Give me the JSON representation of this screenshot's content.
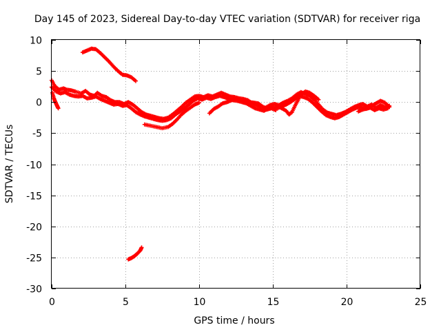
{
  "chart_data": {
    "type": "scatter",
    "title": "Day 145 of 2023, Sidereal Day-to-day VTEC variation (SDTVAR) for receiver riga",
    "xlabel": "GPS time / hours",
    "ylabel": "SDTVAR / TECUs",
    "xlim": [
      0,
      25
    ],
    "ylim": [
      -30,
      10
    ],
    "xticks": [
      0,
      5,
      10,
      15,
      20,
      25
    ],
    "yticks": [
      -30,
      -25,
      -20,
      -15,
      -10,
      -5,
      0,
      5,
      10
    ],
    "grid": true,
    "marker": "plus",
    "colors": {
      "series": "#ff0000",
      "grid": "#a0a0a0",
      "axes": "#000000"
    },
    "series": [
      {
        "name": "arc-main",
        "points": [
          [
            0.0,
            3.5
          ],
          [
            0.2,
            2.6
          ],
          [
            0.5,
            2.0
          ],
          [
            0.8,
            2.2
          ],
          [
            1.0,
            2.0
          ],
          [
            1.3,
            1.9
          ],
          [
            1.6,
            1.7
          ],
          [
            2.0,
            1.4
          ],
          [
            2.3,
            1.8
          ],
          [
            2.6,
            1.2
          ],
          [
            2.9,
            1.0
          ],
          [
            3.1,
            1.5
          ],
          [
            3.4,
            1.0
          ],
          [
            3.7,
            0.8
          ],
          [
            4.0,
            0.3
          ],
          [
            4.3,
            0.0
          ],
          [
            4.6,
            0.0
          ],
          [
            4.9,
            -0.3
          ],
          [
            5.2,
            0.0
          ],
          [
            5.5,
            -0.4
          ],
          [
            5.8,
            -1.0
          ],
          [
            6.1,
            -1.6
          ],
          [
            6.4,
            -2.0
          ],
          [
            6.7,
            -2.2
          ],
          [
            7.0,
            -2.4
          ],
          [
            7.3,
            -2.6
          ],
          [
            7.6,
            -2.7
          ],
          [
            7.9,
            -2.5
          ],
          [
            8.2,
            -2.0
          ],
          [
            8.5,
            -1.4
          ],
          [
            8.8,
            -0.8
          ],
          [
            9.1,
            -0.1
          ],
          [
            9.4,
            0.4
          ],
          [
            9.7,
            0.9
          ],
          [
            10.0,
            1.0
          ],
          [
            10.3,
            0.8
          ],
          [
            10.6,
            1.1
          ],
          [
            10.9,
            0.9
          ],
          [
            11.2,
            1.2
          ],
          [
            11.5,
            1.5
          ],
          [
            11.8,
            1.2
          ],
          [
            12.1,
            0.9
          ],
          [
            12.4,
            0.8
          ],
          [
            12.7,
            0.6
          ],
          [
            13.0,
            0.5
          ],
          [
            13.3,
            0.3
          ],
          [
            13.6,
            -0.2
          ],
          [
            13.9,
            -0.5
          ],
          [
            14.2,
            -0.8
          ],
          [
            14.5,
            -0.9
          ],
          [
            14.8,
            -0.5
          ],
          [
            15.1,
            -0.3
          ],
          [
            15.4,
            -0.5
          ],
          [
            15.7,
            -0.1
          ],
          [
            16.0,
            0.2
          ],
          [
            16.3,
            0.6
          ],
          [
            16.6,
            1.2
          ],
          [
            16.9,
            1.6
          ],
          [
            17.2,
            1.3
          ],
          [
            17.5,
            1.0
          ],
          [
            17.8,
            0.4
          ],
          [
            18.1,
            -0.4
          ],
          [
            18.4,
            -1.2
          ],
          [
            18.7,
            -1.7
          ],
          [
            19.0,
            -1.9
          ],
          [
            19.3,
            -2.1
          ],
          [
            19.6,
            -1.9
          ],
          [
            19.9,
            -1.6
          ],
          [
            20.2,
            -1.2
          ],
          [
            20.5,
            -0.8
          ],
          [
            20.8,
            -0.5
          ],
          [
            21.1,
            -0.3
          ],
          [
            21.4,
            -0.7
          ],
          [
            21.7,
            -0.4
          ],
          [
            22.0,
            -0.9
          ],
          [
            22.3,
            -0.5
          ],
          [
            22.6,
            -0.8
          ],
          [
            22.9,
            -0.6
          ]
        ]
      },
      {
        "name": "arc-lower-band",
        "points": [
          [
            0.0,
            2.4
          ],
          [
            0.3,
            1.7
          ],
          [
            0.6,
            1.4
          ],
          [
            0.9,
            1.6
          ],
          [
            1.2,
            1.2
          ],
          [
            1.5,
            1.0
          ],
          [
            1.8,
            0.9
          ],
          [
            2.1,
            1.0
          ],
          [
            2.4,
            0.6
          ],
          [
            2.7,
            0.7
          ],
          [
            3.0,
            0.9
          ],
          [
            3.3,
            0.5
          ],
          [
            3.6,
            0.2
          ],
          [
            3.9,
            -0.1
          ],
          [
            4.2,
            -0.4
          ],
          [
            4.5,
            -0.3
          ],
          [
            4.8,
            -0.6
          ],
          [
            5.1,
            -0.5
          ],
          [
            5.4,
            -1.0
          ],
          [
            5.7,
            -1.6
          ],
          [
            6.0,
            -2.0
          ],
          [
            6.3,
            -2.3
          ],
          [
            6.6,
            -2.5
          ],
          [
            6.9,
            -2.7
          ],
          [
            7.2,
            -2.9
          ],
          [
            7.5,
            -3.0
          ],
          [
            7.8,
            -2.9
          ],
          [
            8.1,
            -2.6
          ],
          [
            8.4,
            -2.0
          ],
          [
            8.7,
            -1.5
          ],
          [
            9.0,
            -1.0
          ],
          [
            9.3,
            -0.4
          ],
          [
            9.6,
            0.2
          ],
          [
            9.9,
            0.6
          ],
          [
            10.2,
            0.4
          ],
          [
            10.5,
            0.7
          ],
          [
            10.8,
            0.5
          ],
          [
            11.1,
            0.8
          ],
          [
            11.4,
            1.0
          ],
          [
            11.7,
            0.8
          ],
          [
            12.0,
            0.5
          ],
          [
            12.3,
            0.3
          ],
          [
            12.6,
            0.2
          ],
          [
            12.9,
            0.0
          ],
          [
            13.2,
            -0.2
          ],
          [
            13.5,
            -0.6
          ],
          [
            13.8,
            -1.0
          ],
          [
            14.1,
            -1.2
          ],
          [
            14.4,
            -1.4
          ],
          [
            14.7,
            -1.0
          ],
          [
            15.0,
            -0.8
          ],
          [
            15.3,
            -1.0
          ],
          [
            15.6,
            -0.7
          ],
          [
            15.9,
            -0.4
          ],
          [
            16.2,
            0.0
          ],
          [
            16.5,
            0.5
          ],
          [
            16.8,
            1.0
          ],
          [
            17.1,
            0.8
          ],
          [
            17.4,
            0.5
          ],
          [
            17.7,
            -0.1
          ],
          [
            18.0,
            -0.8
          ],
          [
            18.3,
            -1.5
          ],
          [
            18.6,
            -2.1
          ],
          [
            18.9,
            -2.4
          ],
          [
            19.2,
            -2.6
          ],
          [
            19.5,
            -2.4
          ],
          [
            19.8,
            -2.0
          ],
          [
            20.1,
            -1.6
          ],
          [
            20.4,
            -1.2
          ],
          [
            20.7,
            -0.9
          ],
          [
            21.0,
            -0.8
          ],
          [
            21.3,
            -1.1
          ],
          [
            21.6,
            -0.9
          ],
          [
            21.9,
            -1.3
          ],
          [
            22.2,
            -1.0
          ],
          [
            22.5,
            -1.2
          ],
          [
            22.8,
            -1.0
          ]
        ]
      },
      {
        "name": "arc-early-dip",
        "points": [
          [
            0.05,
            1.5
          ],
          [
            0.15,
            0.6
          ],
          [
            0.25,
            0.0
          ],
          [
            0.35,
            -0.5
          ],
          [
            0.45,
            -1.0
          ]
        ]
      },
      {
        "name": "arc-high",
        "points": [
          [
            2.1,
            8.0
          ],
          [
            2.4,
            8.3
          ],
          [
            2.7,
            8.6
          ],
          [
            3.0,
            8.5
          ],
          [
            3.3,
            7.9
          ],
          [
            3.6,
            7.2
          ],
          [
            3.9,
            6.5
          ],
          [
            4.2,
            5.7
          ],
          [
            4.5,
            5.0
          ],
          [
            4.8,
            4.4
          ],
          [
            5.1,
            4.3
          ],
          [
            5.4,
            4.0
          ],
          [
            5.7,
            3.4
          ]
        ]
      },
      {
        "name": "arc-evening-low",
        "points": [
          [
            6.3,
            -3.6
          ],
          [
            6.7,
            -3.8
          ],
          [
            7.1,
            -4.0
          ],
          [
            7.5,
            -4.2
          ],
          [
            7.9,
            -4.0
          ],
          [
            8.2,
            -3.5
          ],
          [
            8.5,
            -2.8
          ],
          [
            8.8,
            -2.0
          ],
          [
            9.1,
            -1.4
          ],
          [
            9.4,
            -0.9
          ],
          [
            9.7,
            -0.4
          ],
          [
            10.0,
            -0.1
          ]
        ]
      },
      {
        "name": "arc-midday",
        "points": [
          [
            10.7,
            -1.8
          ],
          [
            11.0,
            -1.1
          ],
          [
            11.3,
            -0.7
          ],
          [
            11.6,
            -0.2
          ],
          [
            11.9,
            0.0
          ],
          [
            12.2,
            0.3
          ],
          [
            12.5,
            0.5
          ],
          [
            12.8,
            0.4
          ],
          [
            13.1,
            0.2
          ],
          [
            13.4,
            0.0
          ],
          [
            13.7,
            -0.1
          ],
          [
            14.0,
            -0.2
          ],
          [
            14.3,
            -0.7
          ],
          [
            14.6,
            -1.2
          ],
          [
            14.9,
            -1.0
          ],
          [
            15.2,
            -1.3
          ]
        ]
      },
      {
        "name": "arc-afternoon",
        "points": [
          [
            15.3,
            -0.6
          ],
          [
            15.6,
            -1.0
          ],
          [
            15.9,
            -1.4
          ],
          [
            16.1,
            -2.0
          ],
          [
            16.3,
            -1.6
          ],
          [
            16.5,
            -0.6
          ],
          [
            16.7,
            0.3
          ],
          [
            16.9,
            1.2
          ],
          [
            17.2,
            1.7
          ],
          [
            17.5,
            1.5
          ],
          [
            17.8,
            1.0
          ],
          [
            18.1,
            0.4
          ]
        ]
      },
      {
        "name": "arc-late",
        "points": [
          [
            20.8,
            -1.5
          ],
          [
            21.1,
            -1.2
          ],
          [
            21.4,
            -1.0
          ],
          [
            21.7,
            -0.6
          ],
          [
            22.0,
            -0.2
          ],
          [
            22.3,
            0.2
          ],
          [
            22.6,
            -0.1
          ],
          [
            22.9,
            -0.8
          ]
        ]
      },
      {
        "name": "arc-outlier",
        "points": [
          [
            5.2,
            -25.3
          ],
          [
            5.4,
            -25.1
          ],
          [
            5.6,
            -24.8
          ],
          [
            5.8,
            -24.4
          ],
          [
            6.0,
            -23.9
          ],
          [
            6.1,
            -23.4
          ]
        ]
      }
    ]
  }
}
